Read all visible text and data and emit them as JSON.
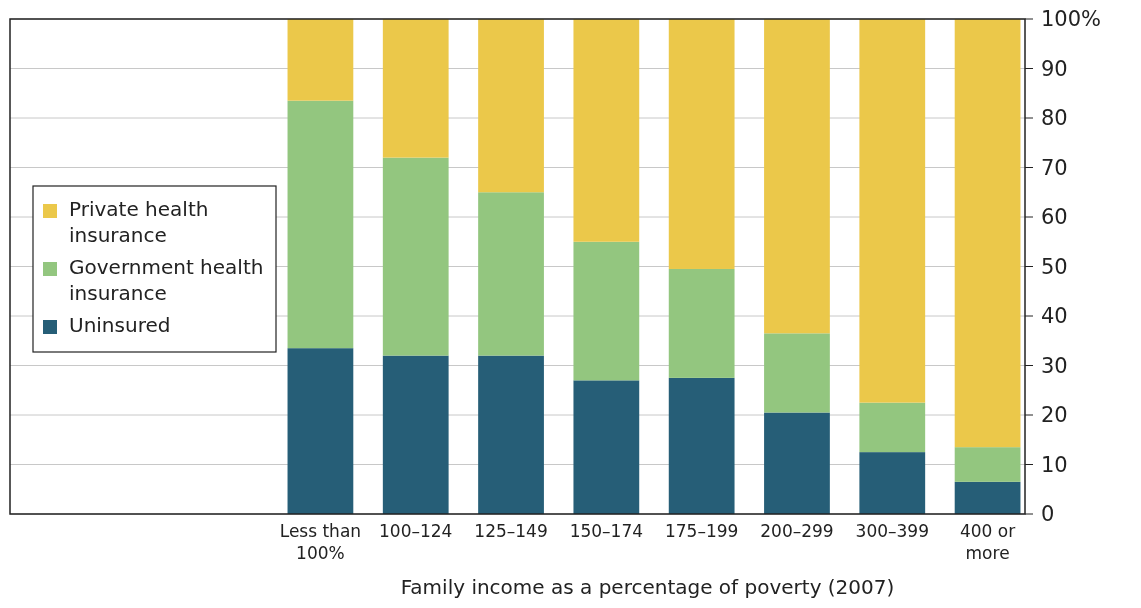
{
  "chart_data": {
    "type": "bar",
    "stacked": true,
    "xlabel": "Family income as a percentage of poverty (2007)",
    "categories": [
      "Less than 100%",
      "100–124",
      "125–149",
      "150–174",
      "175–199",
      "200–299",
      "300–399",
      "400 or more"
    ],
    "series": [
      {
        "name": "Uninsured",
        "color": "#265e77",
        "values": [
          33.5,
          32,
          32,
          27,
          27.5,
          20.5,
          12.5,
          6.5
        ]
      },
      {
        "name": "Government health insurance",
        "color": "#93c67f",
        "values": [
          50,
          40,
          33,
          28,
          22,
          16,
          10,
          7
        ]
      },
      {
        "name": "Private health insurance",
        "color": "#ebc84a",
        "values": [
          16.5,
          28,
          35,
          45,
          50.5,
          63.5,
          77.5,
          86.5
        ]
      }
    ],
    "ylim": [
      0,
      100
    ],
    "yticks": [
      0,
      10,
      20,
      30,
      40,
      50,
      60,
      70,
      80,
      90,
      {
        "value": 100,
        "label": "100%"
      }
    ],
    "grid": "y",
    "legend": "left"
  }
}
